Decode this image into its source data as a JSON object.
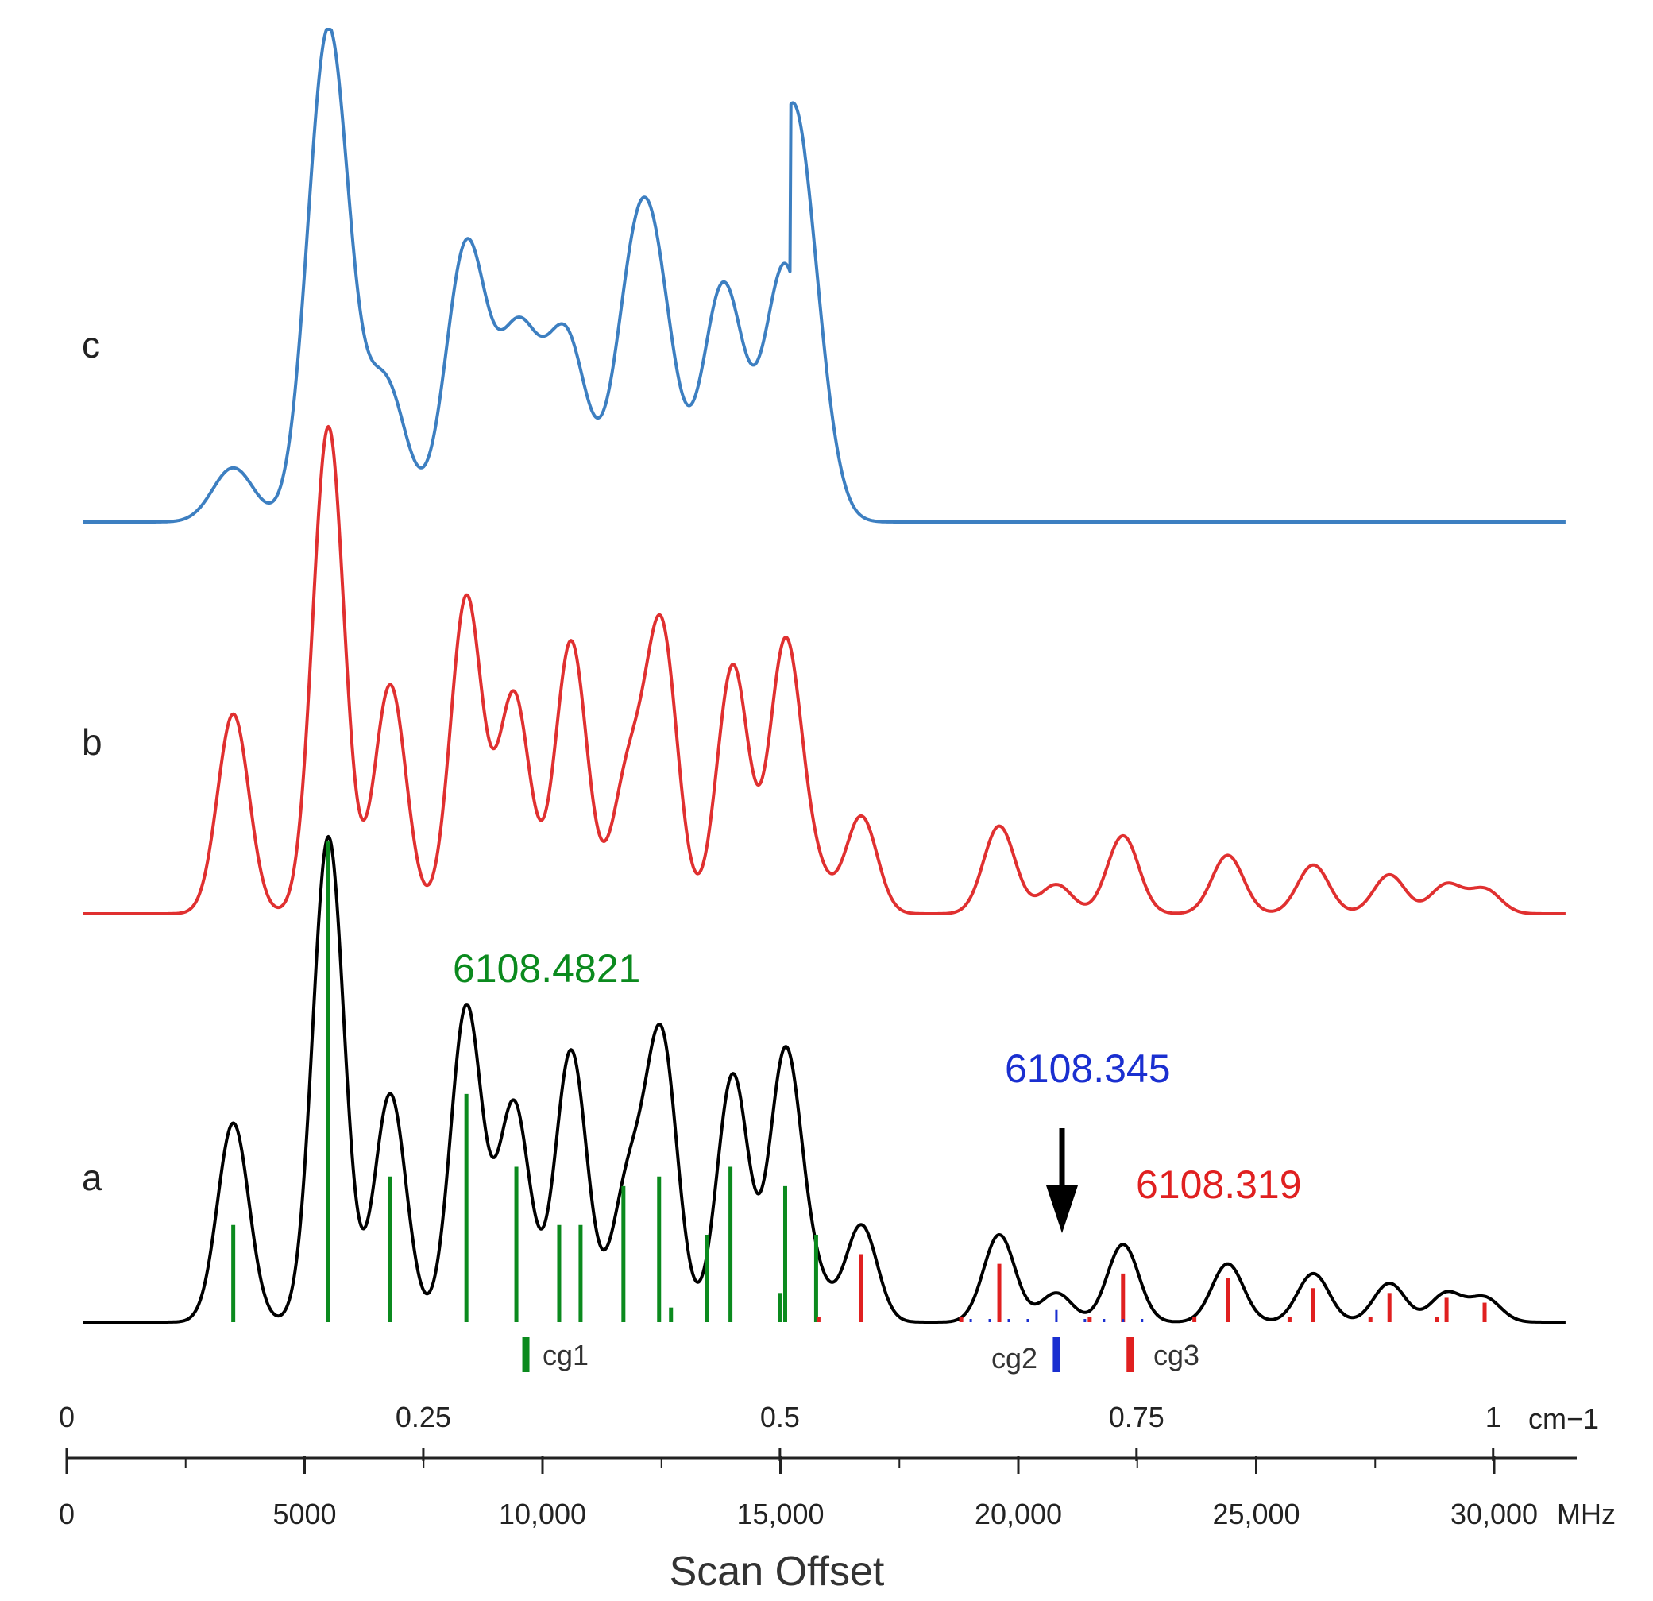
{
  "chart_data": {
    "type": "line",
    "title": "",
    "xlabel": "Scan Offset",
    "x_unit": "MHz",
    "x_unit_secondary": "cm−1",
    "xlim": [
      0,
      31500
    ],
    "x_ticks": [
      {
        "value": 0,
        "label": "0"
      },
      {
        "value": 5000,
        "label": "5000"
      },
      {
        "value": 10000,
        "label": "10,000"
      },
      {
        "value": 15000,
        "label": "15,000"
      },
      {
        "value": 20000,
        "label": "20,000"
      },
      {
        "value": 25000,
        "label": "25,000"
      },
      {
        "value": 30000,
        "label": "30,000"
      }
    ],
    "x_ticks_secondary": [
      {
        "value": 0,
        "label": "0"
      },
      {
        "value": 0.25,
        "label": "0.25"
      },
      {
        "value": 0.5,
        "label": "0.5"
      },
      {
        "value": 0.75,
        "label": "0.75"
      },
      {
        "value": 1,
        "label": "1"
      }
    ],
    "mhz_per_cm1": 29979,
    "grid": false,
    "series": [
      {
        "name": "c",
        "color": "#3d7fc1",
        "peaks": [
          {
            "x": 3500,
            "h": 0.11
          },
          {
            "x": 5500,
            "h": 1.0
          },
          {
            "x": 6700,
            "h": 0.28
          },
          {
            "x": 8400,
            "h": 0.56
          },
          {
            "x": 9500,
            "h": 0.37
          },
          {
            "x": 10500,
            "h": 0.37
          },
          {
            "x": 11900,
            "h": 0.4
          },
          {
            "x": 12400,
            "h": 0.38
          },
          {
            "x": 13800,
            "h": 0.48
          },
          {
            "x": 15100,
            "h": 0.52
          }
        ]
      },
      {
        "name": "b",
        "color": "#e03030",
        "peaks": [
          {
            "x": 3500,
            "h": 0.41
          },
          {
            "x": 5500,
            "h": 1.0
          },
          {
            "x": 6800,
            "h": 0.47
          },
          {
            "x": 8400,
            "h": 0.65
          },
          {
            "x": 9400,
            "h": 0.45
          },
          {
            "x": 10600,
            "h": 0.56
          },
          {
            "x": 11800,
            "h": 0.28
          },
          {
            "x": 12500,
            "h": 0.58
          },
          {
            "x": 14000,
            "h": 0.51
          },
          {
            "x": 15100,
            "h": 0.55
          },
          {
            "x": 15700,
            "h": 0.08
          },
          {
            "x": 16700,
            "h": 0.2
          },
          {
            "x": 19600,
            "h": 0.18
          },
          {
            "x": 20800,
            "h": 0.06
          },
          {
            "x": 22200,
            "h": 0.16
          },
          {
            "x": 24400,
            "h": 0.12
          },
          {
            "x": 26200,
            "h": 0.1
          },
          {
            "x": 27800,
            "h": 0.08
          },
          {
            "x": 29000,
            "h": 0.06
          },
          {
            "x": 29800,
            "h": 0.05
          }
        ]
      },
      {
        "name": "a",
        "color": "#000000",
        "peaks": [
          {
            "x": 3500,
            "h": 0.41
          },
          {
            "x": 5500,
            "h": 1.0
          },
          {
            "x": 6800,
            "h": 0.47
          },
          {
            "x": 8400,
            "h": 0.65
          },
          {
            "x": 9400,
            "h": 0.45
          },
          {
            "x": 10600,
            "h": 0.56
          },
          {
            "x": 11800,
            "h": 0.28
          },
          {
            "x": 12500,
            "h": 0.58
          },
          {
            "x": 14000,
            "h": 0.51
          },
          {
            "x": 15100,
            "h": 0.55
          },
          {
            "x": 15700,
            "h": 0.08
          },
          {
            "x": 16700,
            "h": 0.2
          },
          {
            "x": 19600,
            "h": 0.18
          },
          {
            "x": 20800,
            "h": 0.06
          },
          {
            "x": 22200,
            "h": 0.16
          },
          {
            "x": 24400,
            "h": 0.12
          },
          {
            "x": 26200,
            "h": 0.1
          },
          {
            "x": 27800,
            "h": 0.08
          },
          {
            "x": 29000,
            "h": 0.06
          },
          {
            "x": 29800,
            "h": 0.05
          }
        ]
      }
    ],
    "stick_spectra": [
      {
        "group": "cg1",
        "color": "#0b8a1e",
        "lines": [
          {
            "x": 3500,
            "h": 0.2
          },
          {
            "x": 5500,
            "h": 0.99
          },
          {
            "x": 6800,
            "h": 0.3
          },
          {
            "x": 8400,
            "h": 0.47
          },
          {
            "x": 9450,
            "h": 0.32
          },
          {
            "x": 10350,
            "h": 0.2
          },
          {
            "x": 10800,
            "h": 0.2
          },
          {
            "x": 11700,
            "h": 0.28
          },
          {
            "x": 12450,
            "h": 0.3
          },
          {
            "x": 12700,
            "h": 0.03
          },
          {
            "x": 13450,
            "h": 0.18
          },
          {
            "x": 13950,
            "h": 0.32
          },
          {
            "x": 15000,
            "h": 0.06
          },
          {
            "x": 15100,
            "h": 0.28
          },
          {
            "x": 15750,
            "h": 0.18
          }
        ]
      },
      {
        "group": "cg3",
        "color": "#e02020",
        "lines": [
          {
            "x": 15800,
            "h": 0.01
          },
          {
            "x": 16700,
            "h": 0.14
          },
          {
            "x": 18800,
            "h": 0.01
          },
          {
            "x": 19600,
            "h": 0.12
          },
          {
            "x": 21500,
            "h": 0.01
          },
          {
            "x": 22200,
            "h": 0.1
          },
          {
            "x": 23700,
            "h": 0.01
          },
          {
            "x": 24400,
            "h": 0.09
          },
          {
            "x": 25700,
            "h": 0.01
          },
          {
            "x": 26200,
            "h": 0.07
          },
          {
            "x": 27400,
            "h": 0.01
          },
          {
            "x": 27800,
            "h": 0.06
          },
          {
            "x": 28800,
            "h": 0.01
          },
          {
            "x": 29000,
            "h": 0.05
          },
          {
            "x": 29800,
            "h": 0.04
          }
        ]
      },
      {
        "group": "cg2",
        "color": "#1a2fd0",
        "lines": [
          {
            "x": 19000,
            "h": 0.005
          },
          {
            "x": 19400,
            "h": 0.005
          },
          {
            "x": 19800,
            "h": 0.005
          },
          {
            "x": 20200,
            "h": 0.005
          },
          {
            "x": 20800,
            "h": 0.025
          },
          {
            "x": 21400,
            "h": 0.005
          },
          {
            "x": 21800,
            "h": 0.005
          },
          {
            "x": 22200,
            "h": 0.005
          },
          {
            "x": 22600,
            "h": 0.005
          }
        ]
      }
    ],
    "band_centers": [
      {
        "label": "cg1",
        "x": 9650,
        "color": "#0b8a1e"
      },
      {
        "label": "cg2",
        "x": 20800,
        "color": "#1a2fd0"
      },
      {
        "label": "cg3",
        "x": 22350,
        "color": "#e02020"
      }
    ],
    "annotations": [
      {
        "text": "6108.4821",
        "color": "#0b8a1e"
      },
      {
        "text": "6108.345",
        "color": "#1a2fd0"
      },
      {
        "text": "6108.319",
        "color": "#e02020"
      }
    ],
    "arrow": {
      "x": 20800
    }
  }
}
